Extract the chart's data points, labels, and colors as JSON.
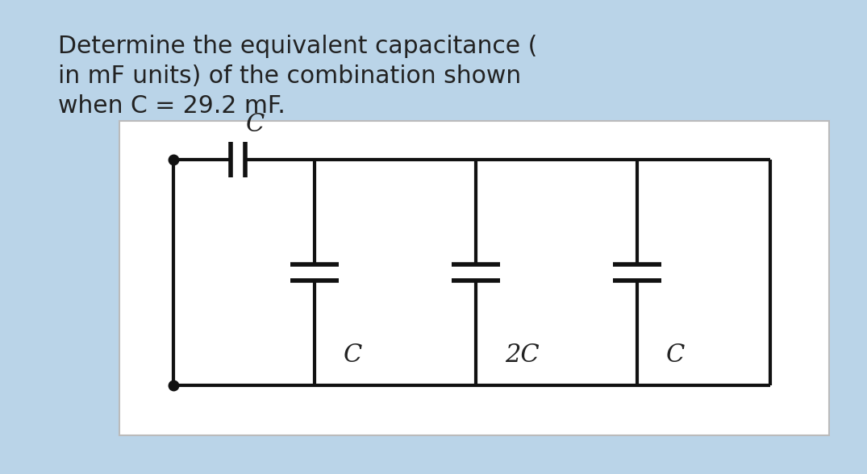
{
  "bg_color": "#bad4e8",
  "inner_bg": "#ffffff",
  "text_color": "#222222",
  "title_lines": [
    "Determine the equivalent capacitance (",
    "in mF units) of the combination shown",
    "when C = 29.2 mF."
  ],
  "title_fontsize": 21.5,
  "line_color": "#111111",
  "line_width": 3.0,
  "cap_label_fontsize": 22,
  "series_cap_label": "C",
  "par_cap_labels": [
    "C",
    "2C",
    "C"
  ]
}
